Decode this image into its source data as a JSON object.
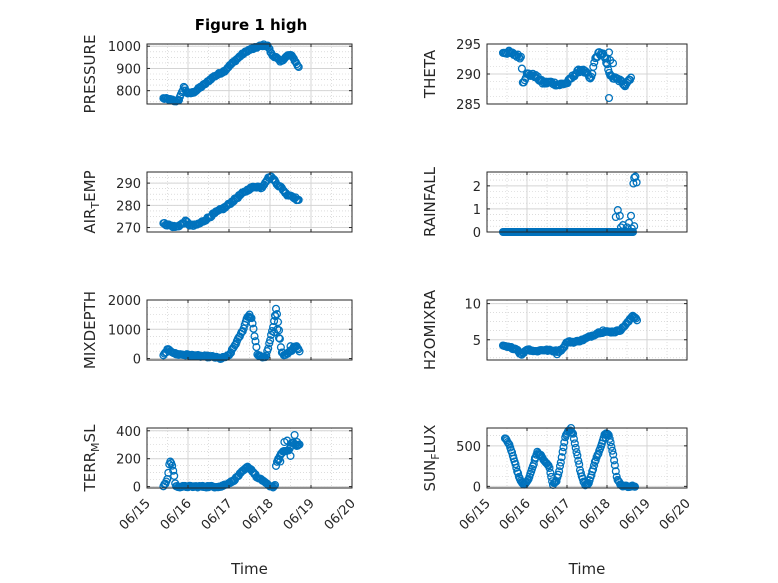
{
  "figure": {
    "title": "Figure 1 high"
  },
  "chart_data": [
    {
      "type": "scatter",
      "panel": "pressure",
      "ylabel": "PRESSURE",
      "ylim": [
        740,
        1010
      ],
      "yticks": [
        800,
        900,
        1000
      ],
      "ytick_labels": [
        "800",
        "900",
        "1000"
      ],
      "xlim": [
        0,
        5
      ],
      "xticks": [
        0,
        1,
        2,
        3,
        4,
        5
      ],
      "xtick_labels": [
        "06/15",
        "06/16",
        "06/17",
        "06/18",
        "06/19",
        "06/20"
      ],
      "xlabel": "",
      "grid": true,
      "marker_color": "#0072bd",
      "key": [
        [
          0.4,
          765
        ],
        [
          0.5,
          762
        ],
        [
          0.6,
          758
        ],
        [
          0.68,
          752
        ],
        [
          0.78,
          760
        ],
        [
          0.85,
          790
        ],
        [
          0.9,
          818
        ],
        [
          0.95,
          800
        ],
        [
          1.0,
          787
        ],
        [
          1.1,
          790
        ],
        [
          1.2,
          800
        ],
        [
          1.3,
          815
        ],
        [
          1.45,
          835
        ],
        [
          1.6,
          860
        ],
        [
          1.75,
          875
        ],
        [
          1.9,
          890
        ],
        [
          2.0,
          910
        ],
        [
          2.15,
          935
        ],
        [
          2.3,
          960
        ],
        [
          2.45,
          980
        ],
        [
          2.6,
          990
        ],
        [
          2.75,
          1000
        ],
        [
          2.85,
          1005
        ],
        [
          2.95,
          1000
        ],
        [
          3.05,
          960
        ],
        [
          3.15,
          950
        ],
        [
          3.25,
          930
        ],
        [
          3.35,
          945
        ],
        [
          3.45,
          960
        ],
        [
          3.55,
          955
        ],
        [
          3.62,
          930
        ],
        [
          3.7,
          905
        ]
      ],
      "points": [],
      "xrange": [
        0.4,
        3.7
      ],
      "n_points": 140,
      "noise": 4
    },
    {
      "type": "scatter",
      "panel": "theta",
      "ylabel": "THETA",
      "ylim": [
        285,
        295
      ],
      "yticks": [
        285,
        290,
        295
      ],
      "ytick_labels": [
        "285",
        "290",
        "295"
      ],
      "xlim": [
        0,
        5
      ],
      "xticks": [
        0,
        1,
        2,
        3,
        4,
        5
      ],
      "xtick_labels": [
        "06/15",
        "06/16",
        "06/17",
        "06/18",
        "06/19",
        "06/20"
      ],
      "xlabel": "",
      "grid": true,
      "marker_color": "#0072bd",
      "key": [
        [
          0.4,
          293.6
        ],
        [
          0.55,
          293.6
        ],
        [
          0.7,
          293.2
        ],
        [
          0.85,
          292.8
        ],
        [
          0.9,
          288.5
        ],
        [
          1.0,
          290.0
        ],
        [
          1.2,
          289.7
        ],
        [
          1.4,
          288.5
        ],
        [
          1.6,
          288.6
        ],
        [
          1.8,
          288.2
        ],
        [
          2.0,
          288.5
        ],
        [
          2.2,
          290.0
        ],
        [
          2.35,
          290.8
        ],
        [
          2.5,
          290.0
        ],
        [
          2.6,
          289.0
        ],
        [
          2.7,
          292.5
        ],
        [
          2.8,
          293.5
        ],
        [
          2.9,
          293.3
        ],
        [
          3.0,
          291.5
        ],
        [
          3.1,
          289.5
        ],
        [
          3.3,
          289.0
        ],
        [
          3.45,
          288.2
        ],
        [
          3.6,
          289.5
        ]
      ],
      "points": [
        [
          3.05,
          286.0
        ],
        [
          3.05,
          293.6
        ],
        [
          3.0,
          292.6
        ],
        [
          3.08,
          292.3
        ],
        [
          3.15,
          291.8
        ]
      ],
      "xrange": [
        0.4,
        3.6
      ],
      "n_points": 130,
      "noise": 0.3
    },
    {
      "type": "scatter",
      "panel": "air-temp",
      "ylabel": "AIR_TEMP",
      "ylim": [
        268,
        295
      ],
      "yticks": [
        270,
        280,
        290
      ],
      "ytick_labels": [
        "270",
        "280",
        "290"
      ],
      "xlim": [
        0,
        5
      ],
      "xticks": [
        0,
        1,
        2,
        3,
        4,
        5
      ],
      "xtick_labels": [
        "06/15",
        "06/16",
        "06/17",
        "06/18",
        "06/19",
        "06/20"
      ],
      "xlabel": "",
      "grid": true,
      "marker_color": "#0072bd",
      "key": [
        [
          0.4,
          271.8
        ],
        [
          0.55,
          271.0
        ],
        [
          0.7,
          270.2
        ],
        [
          0.85,
          271.5
        ],
        [
          0.95,
          272.8
        ],
        [
          1.05,
          271.0
        ],
        [
          1.15,
          270.8
        ],
        [
          1.3,
          272.0
        ],
        [
          1.5,
          274.5
        ],
        [
          1.7,
          277.0
        ],
        [
          1.9,
          279.0
        ],
        [
          2.1,
          282.0
        ],
        [
          2.3,
          285.0
        ],
        [
          2.5,
          287.5
        ],
        [
          2.65,
          288.5
        ],
        [
          2.8,
          288.0
        ],
        [
          2.9,
          291.0
        ],
        [
          3.0,
          293.0
        ],
        [
          3.1,
          291.5
        ],
        [
          3.2,
          289.0
        ],
        [
          3.3,
          287.5
        ],
        [
          3.4,
          285.0
        ],
        [
          3.5,
          284.5
        ],
        [
          3.6,
          283.5
        ],
        [
          3.7,
          282.0
        ]
      ],
      "points": [],
      "xrange": [
        0.4,
        3.7
      ],
      "n_points": 130,
      "noise": 0.5
    },
    {
      "type": "scatter",
      "panel": "rainfall",
      "ylabel": "RAINFALL",
      "ylim": [
        0,
        2.6
      ],
      "yticks": [
        0,
        1,
        2
      ],
      "ytick_labels": [
        "0",
        "1",
        "2"
      ],
      "xlim": [
        0,
        5
      ],
      "xticks": [
        0,
        1,
        2,
        3,
        4,
        5
      ],
      "xtick_labels": [
        "06/15",
        "06/16",
        "06/17",
        "06/18",
        "06/19",
        "06/20"
      ],
      "xlabel": "",
      "grid": true,
      "marker_color": "#0072bd",
      "key": [
        [
          0.4,
          0.0
        ],
        [
          3.2,
          0.0
        ],
        [
          3.7,
          0.0
        ]
      ],
      "points": [
        [
          3.22,
          0.65
        ],
        [
          3.27,
          0.95
        ],
        [
          3.32,
          0.7
        ],
        [
          3.35,
          0.2
        ],
        [
          3.4,
          0.3
        ],
        [
          3.45,
          0.05
        ],
        [
          3.5,
          0.2
        ],
        [
          3.55,
          0.4
        ],
        [
          3.6,
          0.7
        ],
        [
          3.62,
          0.15
        ],
        [
          3.66,
          2.1
        ],
        [
          3.68,
          2.35
        ],
        [
          3.71,
          2.4
        ],
        [
          3.74,
          2.15
        ],
        [
          3.68,
          0.25
        ]
      ],
      "xrange": [
        0.4,
        3.65
      ],
      "n_points": 150,
      "noise": 0
    },
    {
      "type": "scatter",
      "panel": "mixdepth",
      "ylabel": "MIXDEPTH",
      "ylim": [
        -50,
        2000
      ],
      "yticks": [
        0,
        1000,
        2000
      ],
      "ytick_labels": [
        "0",
        "1000",
        "2000"
      ],
      "xlim": [
        0,
        5
      ],
      "xticks": [
        0,
        1,
        2,
        3,
        4,
        5
      ],
      "xtick_labels": [
        "06/15",
        "06/16",
        "06/17",
        "06/18",
        "06/19",
        "06/20"
      ],
      "xlabel": "",
      "grid": true,
      "marker_color": "#0072bd",
      "key": [
        [
          0.4,
          100
        ],
        [
          0.5,
          300
        ],
        [
          0.6,
          250
        ],
        [
          0.7,
          150
        ],
        [
          1.0,
          120
        ],
        [
          1.3,
          80
        ],
        [
          1.6,
          60
        ],
        [
          1.8,
          0
        ],
        [
          2.0,
          100
        ],
        [
          2.2,
          600
        ],
        [
          2.35,
          1000
        ],
        [
          2.45,
          1450
        ],
        [
          2.55,
          1400
        ],
        [
          2.62,
          800
        ],
        [
          2.7,
          100
        ],
        [
          2.8,
          50
        ],
        [
          2.9,
          60
        ],
        [
          2.98,
          500
        ],
        [
          3.08,
          1100
        ],
        [
          3.15,
          1700
        ],
        [
          3.2,
          1200
        ],
        [
          3.28,
          250
        ],
        [
          3.35,
          100
        ],
        [
          3.45,
          200
        ],
        [
          3.55,
          300
        ],
        [
          3.62,
          450
        ],
        [
          3.72,
          250
        ]
      ],
      "points": [
        [
          3.1,
          900
        ],
        [
          3.13,
          1450
        ],
        [
          3.18,
          1000
        ],
        [
          3.22,
          700
        ],
        [
          2.5,
          1500
        ],
        [
          3.5,
          420
        ],
        [
          3.58,
          400
        ]
      ],
      "xrange": [
        0.4,
        3.72
      ],
      "n_points": 140,
      "noise": 30
    },
    {
      "type": "scatter",
      "panel": "h2omixra",
      "ylabel": "H2OMIXRA",
      "ylim": [
        2.2,
        10.5
      ],
      "yticks": [
        5,
        10
      ],
      "ytick_labels": [
        "5",
        "10"
      ],
      "xlim": [
        0,
        5
      ],
      "xticks": [
        0,
        1,
        2,
        3,
        4,
        5
      ],
      "xtick_labels": [
        "06/15",
        "06/16",
        "06/17",
        "06/18",
        "06/19",
        "06/20"
      ],
      "xlabel": "",
      "grid": true,
      "marker_color": "#0072bd",
      "key": [
        [
          0.4,
          4.1
        ],
        [
          0.6,
          3.9
        ],
        [
          0.75,
          3.7
        ],
        [
          0.85,
          2.9
        ],
        [
          1.0,
          3.7
        ],
        [
          1.2,
          3.4
        ],
        [
          1.4,
          3.6
        ],
        [
          1.6,
          3.5
        ],
        [
          1.8,
          3.4
        ],
        [
          1.9,
          3.8
        ],
        [
          2.0,
          4.7
        ],
        [
          2.2,
          4.7
        ],
        [
          2.4,
          5.0
        ],
        [
          2.6,
          5.5
        ],
        [
          2.8,
          6.0
        ],
        [
          3.0,
          6.1
        ],
        [
          3.2,
          6.1
        ],
        [
          3.35,
          6.4
        ],
        [
          3.45,
          7.0
        ],
        [
          3.55,
          7.6
        ],
        [
          3.65,
          8.4
        ],
        [
          3.75,
          7.8
        ]
      ],
      "points": [
        [
          1.75,
          3.0
        ],
        [
          2.9,
          6.3
        ]
      ],
      "xrange": [
        0.4,
        3.75
      ],
      "n_points": 130,
      "noise": 0.12
    },
    {
      "type": "scatter",
      "panel": "terr-msl",
      "ylabel": "TERR_MSL",
      "ylim": [
        -10,
        420
      ],
      "yticks": [
        0,
        200,
        400
      ],
      "ytick_labels": [
        "0",
        "200",
        "400"
      ],
      "xlim": [
        0,
        5
      ],
      "xticks": [
        0,
        1,
        2,
        3,
        4,
        5
      ],
      "xtick_labels": [
        "06/15",
        "06/16",
        "06/17",
        "06/18",
        "06/19",
        "06/20"
      ],
      "xlabel": "Time",
      "grid": true,
      "marker_color": "#0072bd",
      "key": [
        [
          0.4,
          0
        ],
        [
          0.5,
          50
        ],
        [
          0.55,
          180
        ],
        [
          0.6,
          170
        ],
        [
          0.65,
          100
        ],
        [
          0.7,
          0
        ],
        [
          1.5,
          0
        ],
        [
          1.8,
          0
        ],
        [
          2.1,
          40
        ],
        [
          2.3,
          100
        ],
        [
          2.45,
          140
        ],
        [
          2.55,
          120
        ],
        [
          2.7,
          60
        ],
        [
          2.85,
          40
        ],
        [
          2.95,
          10
        ],
        [
          3.05,
          0
        ],
        [
          3.12,
          0
        ],
        [
          3.15,
          160
        ],
        [
          3.3,
          250
        ],
        [
          3.45,
          260
        ],
        [
          3.55,
          320
        ],
        [
          3.65,
          290
        ],
        [
          3.72,
          300
        ]
      ],
      "points": [
        [
          3.35,
          320
        ],
        [
          3.42,
          330
        ],
        [
          3.5,
          220
        ],
        [
          3.6,
          370
        ],
        [
          3.66,
          320
        ],
        [
          3.2,
          200
        ],
        [
          3.25,
          180
        ]
      ],
      "xrange": [
        0.4,
        3.72
      ],
      "n_points": 140,
      "noise": 6
    },
    {
      "type": "scatter",
      "panel": "sun-flux",
      "ylabel": "SUN_FLUX",
      "ylim": [
        -20,
        720
      ],
      "yticks": [
        0,
        500
      ],
      "ytick_labels": [
        "0",
        "500"
      ],
      "xlim": [
        0,
        5
      ],
      "xticks": [
        0,
        1,
        2,
        3,
        4,
        5
      ],
      "xtick_labels": [
        "06/15",
        "06/16",
        "06/17",
        "06/18",
        "06/19",
        "06/20"
      ],
      "xlabel": "Time",
      "grid": true,
      "marker_color": "#0072bd",
      "key": [
        [
          0.45,
          600
        ],
        [
          0.55,
          520
        ],
        [
          0.65,
          380
        ],
        [
          0.75,
          200
        ],
        [
          0.85,
          50
        ],
        [
          0.95,
          20
        ],
        [
          1.05,
          100
        ],
        [
          1.15,
          250
        ],
        [
          1.25,
          420
        ],
        [
          1.35,
          380
        ],
        [
          1.45,
          300
        ],
        [
          1.55,
          250
        ],
        [
          1.65,
          20
        ],
        [
          1.75,
          80
        ],
        [
          1.85,
          300
        ],
        [
          1.95,
          600
        ],
        [
          2.05,
          700
        ],
        [
          2.15,
          650
        ],
        [
          2.25,
          400
        ],
        [
          2.35,
          150
        ],
        [
          2.45,
          20
        ],
        [
          2.55,
          40
        ],
        [
          2.7,
          300
        ],
        [
          2.85,
          500
        ],
        [
          2.95,
          650
        ],
        [
          3.05,
          630
        ],
        [
          3.15,
          400
        ],
        [
          3.25,
          100
        ],
        [
          3.35,
          10
        ],
        [
          3.5,
          0
        ],
        [
          3.7,
          0
        ]
      ],
      "points": [
        [
          1.2,
          350
        ],
        [
          2.1,
          720
        ],
        [
          2.97,
          600
        ]
      ],
      "xrange": [
        0.45,
        3.7
      ],
      "n_points": 150,
      "noise": 10
    }
  ]
}
